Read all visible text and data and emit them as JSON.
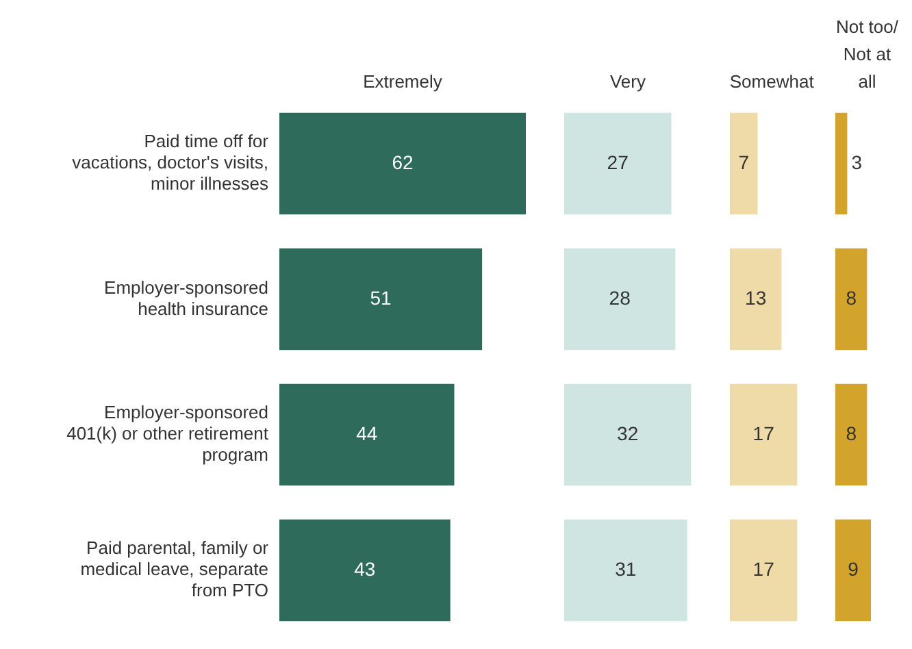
{
  "chart_data": [
    {
      "type": "bar",
      "orientation": "horizontal",
      "title": "Extremely",
      "categories": [
        "Paid time off for vacations, doctor's visits, minor illnesses",
        "Employer-sponsored health insurance",
        "Employer-sponsored 401(k) or other retirement program",
        "Paid parental, family or medical leave, separate from PTO"
      ],
      "values": [
        62,
        51,
        44,
        43
      ],
      "color": "#2e6b5b",
      "data_labels": true,
      "tick_labels": "y"
    },
    {
      "type": "bar",
      "orientation": "horizontal",
      "title": "Very",
      "categories": [
        null,
        null,
        null,
        null
      ],
      "values": [
        27,
        28,
        32,
        31
      ],
      "color": "#cfe5e2",
      "data_labels": true,
      "tick_labels": false
    },
    {
      "type": "bar",
      "orientation": "horizontal",
      "title": "Somewhat",
      "categories": [
        null,
        null,
        null,
        null
      ],
      "values": [
        7,
        13,
        17,
        17
      ],
      "color": "#efdba8",
      "data_labels": true,
      "tick_labels": false
    },
    {
      "type": "bar",
      "orientation": "horizontal",
      "title": "Not too/ Not at all",
      "categories": [
        null,
        null,
        null,
        null
      ],
      "values": [
        3,
        8,
        8,
        9
      ],
      "color": "#d3a42c",
      "data_labels": true,
      "tick_labels": false
    }
  ]
}
